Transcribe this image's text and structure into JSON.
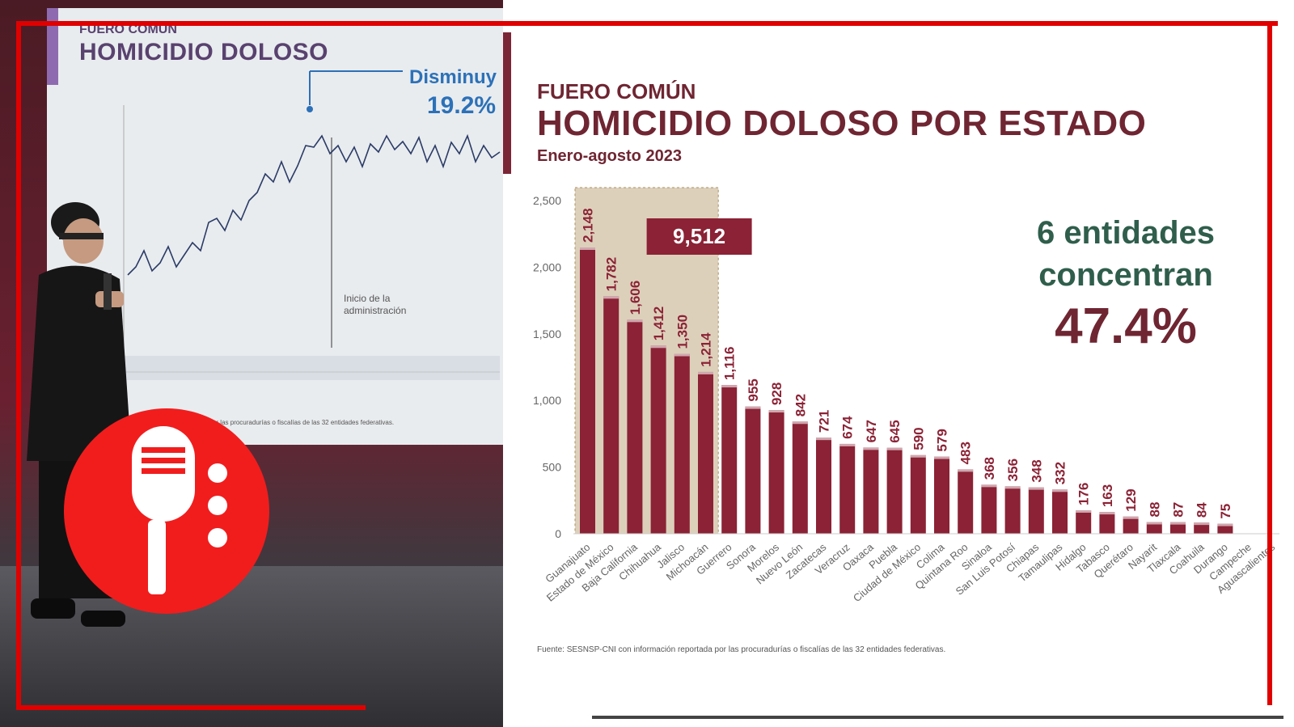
{
  "left_slide": {
    "subtitle": "FUERO COMÚN",
    "title": "HOMICIDIO DOLOSO",
    "annotation_label": "Disminuy",
    "annotation_value": "19.2%",
    "marker_text": "Inicio de la administración",
    "footnote": "... agosto 2023 ... reportada por las procuradurías o fiscalías de las 32 entidades federativas."
  },
  "logo": {
    "icon": "microphone-icon",
    "color": "#f11d1d"
  },
  "colors": {
    "bar": "#8b2235",
    "title": "#6f2532",
    "annotation_green": "#2f5e4c",
    "frame": "#e00000"
  },
  "chart_data": {
    "type": "bar",
    "subtitle": "FUERO COMÚN",
    "title": "HOMICIDIO DOLOSO POR ESTADO",
    "period": "Enero-agosto 2023",
    "categories": [
      "Guanajuato",
      "Estado de México",
      "Baja California",
      "Chihuahua",
      "Jalisco",
      "Michoacán",
      "Guerrero",
      "Sonora",
      "Morelos",
      "Nuevo León",
      "Zacatecas",
      "Veracruz",
      "Oaxaca",
      "Puebla",
      "Ciudad de México",
      "Colima",
      "Quintana Roo",
      "Sinaloa",
      "San Luis Potosí",
      "Chiapas",
      "Tamaulipas",
      "Hidalgo",
      "Tabasco",
      "Querétaro",
      "Nayarit",
      "Tlaxcala",
      "Coahuila",
      "Durango",
      "Campeche",
      "Aguascalientes"
    ],
    "values": [
      2148,
      1782,
      1606,
      1412,
      1350,
      1214,
      1116,
      955,
      928,
      842,
      721,
      674,
      647,
      645,
      590,
      579,
      483,
      368,
      356,
      348,
      332,
      176,
      163,
      129,
      88,
      87,
      84,
      75,
      null,
      null
    ],
    "value_labels": [
      "2,148",
      "1,782",
      "1,606",
      "1,412",
      "1,350",
      "1,214",
      "1,116",
      "955",
      "928",
      "842",
      "721",
      "674",
      "647",
      "645",
      "590",
      "579",
      "483",
      "368",
      "356",
      "348",
      "332",
      "176",
      "163",
      "129",
      "88",
      "87",
      "84",
      "75",
      "",
      ""
    ],
    "ylim": [
      0,
      2500
    ],
    "yticks": [
      "0",
      "500",
      "1,000",
      "1,500",
      "2,000",
      "2,500"
    ],
    "highlight": {
      "count": 6,
      "total_label": "9,512"
    },
    "annotation": {
      "line1": "6 entidades",
      "line2": "concentran",
      "percent": "47.4%"
    },
    "source": "Fuente: SESNSP-CNI con información reportada por las procuradurías o fiscalías de las 32 entidades federativas."
  }
}
